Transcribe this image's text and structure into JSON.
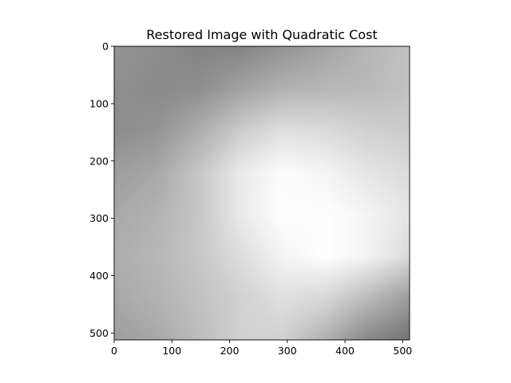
{
  "chart_data": {
    "type": "heatmap",
    "title": "Restored Image with Quadratic Cost",
    "colormap": "gray",
    "xlabel": "",
    "ylabel": "",
    "xlim": [
      0,
      512
    ],
    "ylim": [
      512,
      0
    ],
    "x_ticks": [
      0,
      100,
      200,
      300,
      400,
      500
    ],
    "y_ticks": [
      0,
      100,
      200,
      300,
      400,
      500
    ],
    "x_tick_labels": [
      "0",
      "100",
      "200",
      "300",
      "400",
      "500"
    ],
    "y_tick_labels": [
      "0",
      "100",
      "200",
      "300",
      "400",
      "500"
    ],
    "grid": false,
    "intensity_grid_step": 64,
    "intensity": [
      [
        0.58,
        0.55,
        0.52,
        0.52,
        0.58,
        0.64,
        0.71,
        0.76
      ],
      [
        0.56,
        0.54,
        0.56,
        0.64,
        0.7,
        0.72,
        0.73,
        0.76
      ],
      [
        0.55,
        0.58,
        0.68,
        0.8,
        0.88,
        0.86,
        0.82,
        0.8
      ],
      [
        0.62,
        0.66,
        0.78,
        0.92,
        0.99,
        0.96,
        0.9,
        0.86
      ],
      [
        0.66,
        0.7,
        0.78,
        0.92,
        1.0,
        1.0,
        0.96,
        0.9
      ],
      [
        0.68,
        0.72,
        0.78,
        0.87,
        0.96,
        1.0,
        0.96,
        0.86
      ],
      [
        0.66,
        0.7,
        0.76,
        0.82,
        0.88,
        0.85,
        0.74,
        0.62
      ],
      [
        0.62,
        0.66,
        0.74,
        0.82,
        0.82,
        0.7,
        0.54,
        0.46
      ]
    ]
  }
}
